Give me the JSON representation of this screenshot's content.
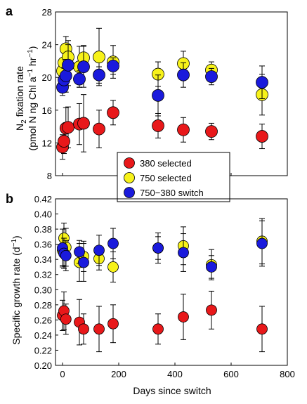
{
  "chart_data": [
    {
      "type": "scatter",
      "panel_label": "a",
      "ylabel_line1_main": "N",
      "ylabel_line1_sub": "2",
      "ylabel_line1_rest": " fixation rate",
      "ylabel_line2": "(pmol N ng Chl a",
      "ylabel_line2_sup": "−1",
      "ylabel_line2_rest": " hr",
      "ylabel_line2_sup2": "−1",
      "ylabel_line2_end": ")",
      "xlim": [
        -25,
        800
      ],
      "ylim": [
        8,
        28
      ],
      "yticks": [
        8,
        12,
        16,
        20,
        24,
        28
      ],
      "xticks": [
        0,
        200,
        400,
        600,
        800
      ],
      "legend": {
        "placement": "bottom-center",
        "entries": [
          {
            "label": "380 selected",
            "color": "#e8181a"
          },
          {
            "label": "750 selected",
            "color": "#f7f21a"
          },
          {
            "label": "750−380 switch",
            "color": "#1a1adc"
          }
        ]
      },
      "series": [
        {
          "name": "380 selected",
          "color": "#e8181a",
          "points": [
            {
              "x": 0,
              "y": 11.5,
              "err": 1.5
            },
            {
              "x": 5,
              "y": 12.2,
              "err": 1.5
            },
            {
              "x": 12,
              "y": 13.8,
              "err": 2.5
            },
            {
              "x": 20,
              "y": 13.9,
              "err": 2.5
            },
            {
              "x": 60,
              "y": 14.3,
              "err": 2.5
            },
            {
              "x": 75,
              "y": 14.4,
              "err": 3.5
            },
            {
              "x": 130,
              "y": 13.7,
              "err": 2.3
            },
            {
              "x": 180,
              "y": 15.7,
              "err": 1.5
            },
            {
              "x": 340,
              "y": 14.1,
              "err": 1.5
            },
            {
              "x": 430,
              "y": 13.6,
              "err": 1.5
            },
            {
              "x": 530,
              "y": 13.4,
              "err": 1.0
            },
            {
              "x": 710,
              "y": 12.8,
              "err": 1.5
            }
          ]
        },
        {
          "name": "750 selected",
          "color": "#f7f21a",
          "points": [
            {
              "x": 0,
              "y": 20.8,
              "err": 1.5
            },
            {
              "x": 5,
              "y": 21.8,
              "err": 1.5
            },
            {
              "x": 12,
              "y": 23.5,
              "err": 1.5
            },
            {
              "x": 20,
              "y": 22.5,
              "err": 2.0
            },
            {
              "x": 60,
              "y": 21.3,
              "err": 2.5
            },
            {
              "x": 75,
              "y": 22.4,
              "err": 1.5
            },
            {
              "x": 130,
              "y": 22.5,
              "err": 3.5
            },
            {
              "x": 180,
              "y": 21.9,
              "err": 2.0
            },
            {
              "x": 340,
              "y": 20.4,
              "err": 1.5
            },
            {
              "x": 430,
              "y": 21.7,
              "err": 1.5
            },
            {
              "x": 530,
              "y": 20.9,
              "err": 1.0
            },
            {
              "x": 710,
              "y": 17.9,
              "err": 2.5
            }
          ]
        },
        {
          "name": "750−380 switch",
          "color": "#1a1adc",
          "points": [
            {
              "x": 0,
              "y": 18.8,
              "err": 1.0
            },
            {
              "x": 5,
              "y": 19.7,
              "err": 1.5
            },
            {
              "x": 12,
              "y": 20.2,
              "err": 2.0
            },
            {
              "x": 20,
              "y": 21.5,
              "err": 2.5
            },
            {
              "x": 60,
              "y": 19.8,
              "err": 1.0
            },
            {
              "x": 75,
              "y": 21.3,
              "err": 2.5
            },
            {
              "x": 130,
              "y": 20.3,
              "err": 1.0
            },
            {
              "x": 180,
              "y": 21.4,
              "err": 1.0
            },
            {
              "x": 340,
              "y": 17.8,
              "err": 2.5
            },
            {
              "x": 430,
              "y": 20.3,
              "err": 1.5
            },
            {
              "x": 530,
              "y": 20.1,
              "err": 1.0
            },
            {
              "x": 710,
              "y": 19.4,
              "err": 2.0
            }
          ]
        }
      ]
    },
    {
      "type": "scatter",
      "panel_label": "b",
      "ylabel_main": "Specific growth rate (d",
      "ylabel_sup": "−1",
      "ylabel_end": ")",
      "xlabel": "Days since switch",
      "xlim": [
        -25,
        800
      ],
      "ylim": [
        0.2,
        0.42
      ],
      "yticks": [
        0.2,
        0.22,
        0.24,
        0.26,
        0.28,
        0.3,
        0.32,
        0.34,
        0.36,
        0.38,
        0.4,
        0.42
      ],
      "ytick_labels": [
        "0.20",
        "0.22",
        "0.24",
        "0.26",
        "0.28",
        "0.30",
        "0.32",
        "0.34",
        "0.36",
        "0.38",
        "0.40",
        "0.42"
      ],
      "xticks": [
        0,
        200,
        400,
        600,
        800
      ],
      "xtick_labels": [
        "0",
        "200",
        "400",
        "600",
        "800"
      ],
      "series": [
        {
          "name": "380 selected",
          "color": "#e8181a",
          "points": [
            {
              "x": 0,
              "y": 0.266,
              "err": 0.02
            },
            {
              "x": 5,
              "y": 0.272,
              "err": 0.025
            },
            {
              "x": 12,
              "y": 0.261,
              "err": 0.02
            },
            {
              "x": 60,
              "y": 0.257,
              "err": 0.03
            },
            {
              "x": 75,
              "y": 0.248,
              "err": 0.02
            },
            {
              "x": 130,
              "y": 0.248,
              "err": 0.03
            },
            {
              "x": 180,
              "y": 0.255,
              "err": 0.025
            },
            {
              "x": 340,
              "y": 0.248,
              "err": 0.02
            },
            {
              "x": 430,
              "y": 0.264,
              "err": 0.03
            },
            {
              "x": 530,
              "y": 0.273,
              "err": 0.025
            },
            {
              "x": 710,
              "y": 0.248,
              "err": 0.03
            }
          ]
        },
        {
          "name": "750 selected",
          "color": "#f7f21a",
          "points": [
            {
              "x": 0,
              "y": 0.352,
              "err": 0.02
            },
            {
              "x": 5,
              "y": 0.368,
              "err": 0.02
            },
            {
              "x": 12,
              "y": 0.356,
              "err": 0.025
            },
            {
              "x": 60,
              "y": 0.336,
              "err": 0.025
            },
            {
              "x": 75,
              "y": 0.344,
              "err": 0.02
            },
            {
              "x": 130,
              "y": 0.341,
              "err": 0.015
            },
            {
              "x": 180,
              "y": 0.33,
              "err": 0.02
            },
            {
              "x": 340,
              "y": 0.355,
              "err": 0.02
            },
            {
              "x": 430,
              "y": 0.358,
              "err": 0.025
            },
            {
              "x": 530,
              "y": 0.333,
              "err": 0.02
            },
            {
              "x": 710,
              "y": 0.364,
              "err": 0.03
            }
          ]
        },
        {
          "name": "750−380 switch",
          "color": "#1a1adc",
          "points": [
            {
              "x": 0,
              "y": 0.355,
              "err": 0.025
            },
            {
              "x": 5,
              "y": 0.348,
              "err": 0.02
            },
            {
              "x": 12,
              "y": 0.345,
              "err": 0.02
            },
            {
              "x": 60,
              "y": 0.35,
              "err": 0.015
            },
            {
              "x": 75,
              "y": 0.336,
              "err": 0.025
            },
            {
              "x": 130,
              "y": 0.352,
              "err": 0.02
            },
            {
              "x": 180,
              "y": 0.361,
              "err": 0.02
            },
            {
              "x": 340,
              "y": 0.355,
              "err": 0.015
            },
            {
              "x": 430,
              "y": 0.349,
              "err": 0.025
            },
            {
              "x": 530,
              "y": 0.33,
              "err": 0.015
            },
            {
              "x": 710,
              "y": 0.361,
              "err": 0.03
            }
          ]
        }
      ]
    }
  ]
}
